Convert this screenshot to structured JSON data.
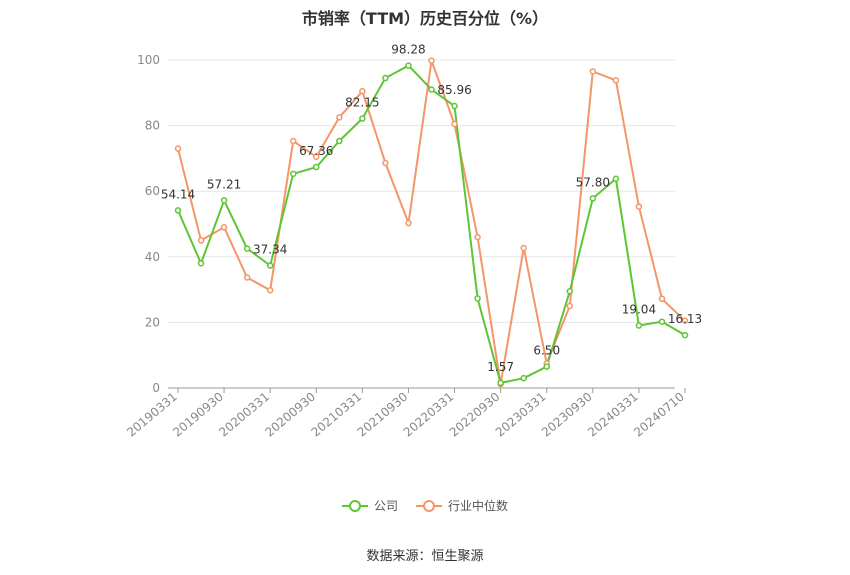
{
  "title": "市销率（TTM）历史百分位（%）",
  "source": "数据来源：恒生聚源",
  "legend": [
    {
      "name": "公司",
      "color": "#5ec535"
    },
    {
      "name": "行业中位数",
      "color": "#f4956a"
    }
  ],
  "chart_data": {
    "type": "line",
    "title": "市销率（TTM）历史百分位（%）",
    "x_tick_labels": [
      "20190331",
      "20190930",
      "20200331",
      "20200930",
      "20210331",
      "20210930",
      "20220331",
      "20220930",
      "20230331",
      "20230930",
      "20240331",
      "20240710"
    ],
    "ylim": [
      0,
      100
    ],
    "y_ticks": [
      0,
      20,
      40,
      60,
      80,
      100
    ],
    "grid": true,
    "legend_position": "bottom",
    "series": [
      {
        "name": "公司",
        "color": "#5ec535",
        "values": [
          54.14,
          38,
          57.21,
          42.5,
          37.34,
          65.3,
          67.36,
          75.3,
          82.15,
          94.5,
          98.28,
          91,
          85.96,
          27.3,
          1.57,
          3,
          6.5,
          29.5,
          57.8,
          63.8,
          19.04,
          20.2,
          16.13
        ],
        "labels": {
          "0": "54.14",
          "2": "57.21",
          "4": "37.34",
          "6": "67.36",
          "8": "82.15",
          "10": "98.28",
          "12": "85.96",
          "14": "1.57",
          "16": "6.50",
          "18": "57.80",
          "20": "19.04",
          "22": "16.13"
        }
      },
      {
        "name": "行业中位数",
        "color": "#f4956a",
        "values": [
          73,
          45,
          49,
          33.7,
          29.8,
          75.3,
          70.5,
          82.5,
          90.5,
          68.6,
          50.3,
          99.8,
          80.5,
          46,
          1.2,
          42.7,
          7.5,
          25,
          96.5,
          93.8,
          55.3,
          27.2,
          20.5
        ]
      }
    ]
  }
}
